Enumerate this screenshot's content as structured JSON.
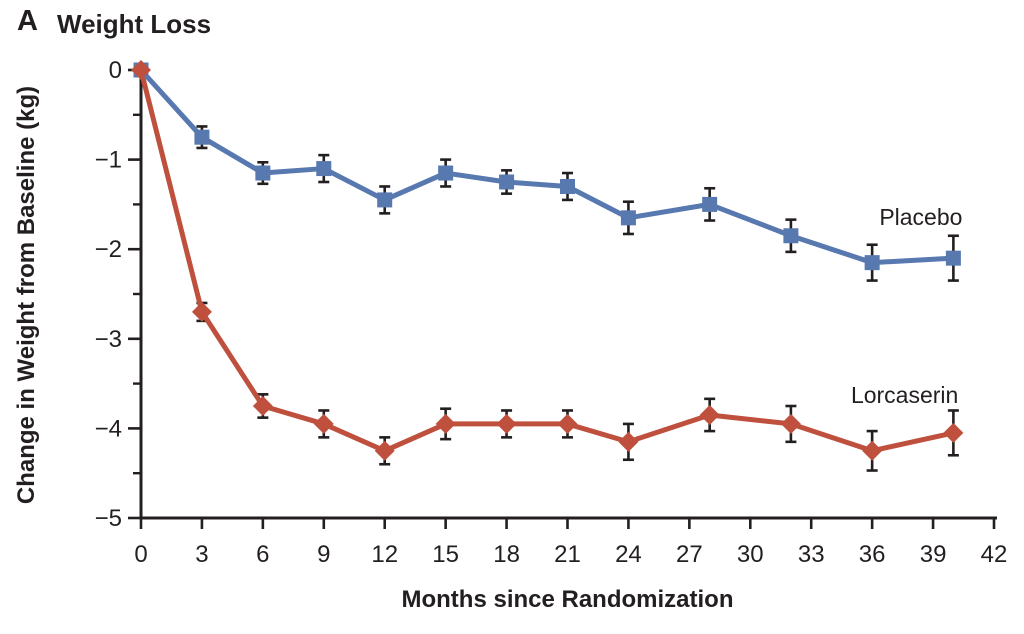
{
  "colors": {
    "text": "#231f20",
    "axis": "#231f20",
    "placebo": "#5878b0",
    "lorcaserin": "#c0503e",
    "background": "#ffffff"
  },
  "chart_data": {
    "type": "line",
    "panel": "A",
    "title": "Weight Loss",
    "xlabel": "Months since Randomization",
    "ylabel": "Change in Weight from Baseline (kg)",
    "x": [
      0,
      3,
      6,
      9,
      12,
      15,
      18,
      21,
      24,
      28,
      32,
      36,
      40
    ],
    "xlim": [
      0,
      42
    ],
    "x_ticks": [
      0,
      3,
      6,
      9,
      12,
      15,
      18,
      21,
      24,
      27,
      30,
      33,
      36,
      39,
      42
    ],
    "ylim": [
      -5,
      0
    ],
    "y_ticks": [
      0,
      -1,
      -2,
      -3,
      -4,
      -5
    ],
    "y_minor_ticks": [
      -0.5,
      -1.5,
      -2.5,
      -3.5,
      -4.5
    ],
    "grid": false,
    "error_bars": true,
    "legend_position": "inline-labels",
    "series": [
      {
        "name": "Placebo",
        "marker": "square",
        "color": "#5878b0",
        "values": [
          0,
          -0.75,
          -1.15,
          -1.1,
          -1.45,
          -1.15,
          -1.25,
          -1.3,
          -1.65,
          -1.5,
          -1.85,
          -2.15,
          -2.1
        ],
        "errors": [
          0,
          0.12,
          0.12,
          0.15,
          0.15,
          0.15,
          0.13,
          0.15,
          0.18,
          0.18,
          0.18,
          0.2,
          0.25
        ],
        "label": {
          "text": "Placebo",
          "x": 38.4,
          "y": -1.64
        }
      },
      {
        "name": "Lorcaserin",
        "marker": "diamond",
        "color": "#c0503e",
        "values": [
          0,
          -2.7,
          -3.75,
          -3.95,
          -4.25,
          -3.95,
          -3.95,
          -3.95,
          -4.15,
          -3.85,
          -3.95,
          -4.25,
          -4.05
        ],
        "errors": [
          0,
          0.1,
          0.13,
          0.15,
          0.15,
          0.17,
          0.15,
          0.15,
          0.2,
          0.18,
          0.2,
          0.22,
          0.25
        ],
        "label": {
          "text": "Lorcaserin",
          "x": 37.6,
          "y": -3.63
        }
      }
    ]
  }
}
